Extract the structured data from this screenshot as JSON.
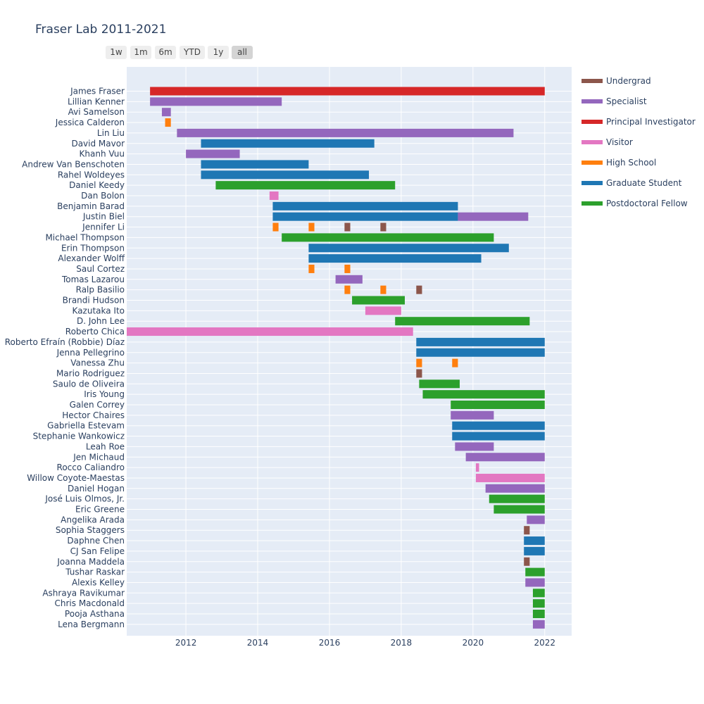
{
  "title": "Fraser Lab 2011-2021",
  "range_buttons": [
    {
      "label": "1w",
      "active": false
    },
    {
      "label": "1m",
      "active": false
    },
    {
      "label": "6m",
      "active": false
    },
    {
      "label": "YTD",
      "active": false
    },
    {
      "label": "1y",
      "active": false
    },
    {
      "label": "all",
      "active": true
    }
  ],
  "legend": [
    {
      "name": "Undergrad",
      "color": "#8c564b"
    },
    {
      "name": "Specialist",
      "color": "#9467bd"
    },
    {
      "name": "Principal Investigator",
      "color": "#d62728"
    },
    {
      "name": "Visitor",
      "color": "#e377c2"
    },
    {
      "name": "High School",
      "color": "#ff7f0e"
    },
    {
      "name": "Graduate Student",
      "color": "#1f77b4"
    },
    {
      "name": "Postdoctoral Fellow",
      "color": "#2ca02c"
    }
  ],
  "chart_data": {
    "type": "gantt",
    "title": "Fraser Lab 2011-2021",
    "x_ticks": [
      "2012",
      "2014",
      "2016",
      "2018",
      "2020",
      "2022"
    ],
    "x_tick_values": [
      2012,
      2014,
      2016,
      2018,
      2020,
      2022
    ],
    "xlim": [
      2010.35,
      2022.75
    ],
    "grid": true,
    "legend_position": "right",
    "people": [
      "James Fraser",
      "Lillian Kenner",
      "Avi Samelson",
      "Jessica Calderon",
      "Lin Liu",
      "David Mavor",
      "Khanh Vuu",
      "Andrew Van Benschoten",
      "Rahel Woldeyes",
      "Daniel Keedy",
      "Dan Bolon",
      "Benjamin Barad",
      "Justin Biel",
      "Jennifer Li",
      "Michael Thompson",
      "Erin Thompson",
      "Alexander Wolff",
      "Saul Cortez",
      "Tomas Lazarou",
      "Ralp Basilio",
      "Brandi Hudson",
      "Kazutaka Ito",
      "D. John Lee",
      "Roberto Chica",
      "Roberto Efraín (Robbie) Díaz",
      "Jenna Pellegrino",
      "Vanessa Zhu",
      "Mario Rodriguez",
      "Saulo de Oliveira",
      "Iris Young",
      "Galen Correy",
      "Hector Chaires",
      "Gabriella Estevam",
      "Stephanie Wankowicz",
      "Leah Roe",
      "Jen Michaud",
      "Rocco Caliandro",
      "Willow Coyote-Maestas",
      "Daniel Hogan",
      "José Luis Olmos, Jr.",
      "Eric Greene",
      "Angelika Arada",
      "Sophia Staggers",
      "Daphne Chen",
      "CJ San Felipe",
      "Joanna Maddela",
      "Tushar Raskar",
      "Alexis Kelley",
      "Ashraya Ravikumar",
      "Chris Macdonald",
      "Pooja Asthana",
      "Lena Bergmann"
    ],
    "tasks": [
      {
        "person": "James Fraser",
        "role": "Principal Investigator",
        "start": 2011.0,
        "end": 2022.0
      },
      {
        "person": "Lillian Kenner",
        "role": "Specialist",
        "start": 2011.0,
        "end": 2014.67
      },
      {
        "person": "Avi Samelson",
        "role": "Specialist",
        "start": 2011.33,
        "end": 2011.58
      },
      {
        "person": "Jessica Calderon",
        "role": "High School",
        "start": 2011.42,
        "end": 2011.58
      },
      {
        "person": "Lin Liu",
        "role": "Specialist",
        "start": 2011.75,
        "end": 2021.13
      },
      {
        "person": "David Mavor",
        "role": "Graduate Student",
        "start": 2012.42,
        "end": 2017.25
      },
      {
        "person": "Khanh Vuu",
        "role": "Specialist",
        "start": 2012.0,
        "end": 2013.5
      },
      {
        "person": "Andrew Van Benschoten",
        "role": "Graduate Student",
        "start": 2012.42,
        "end": 2015.42
      },
      {
        "person": "Rahel Woldeyes",
        "role": "Graduate Student",
        "start": 2012.42,
        "end": 2017.1
      },
      {
        "person": "Daniel Keedy",
        "role": "Postdoctoral Fellow",
        "start": 2012.83,
        "end": 2017.83
      },
      {
        "person": "Dan Bolon",
        "role": "Visitor",
        "start": 2014.33,
        "end": 2014.58
      },
      {
        "person": "Benjamin Barad",
        "role": "Graduate Student",
        "start": 2014.42,
        "end": 2019.58
      },
      {
        "person": "Justin Biel",
        "role": "Graduate Student",
        "start": 2014.42,
        "end": 2019.58
      },
      {
        "person": "Justin Biel",
        "role": "Specialist",
        "start": 2019.58,
        "end": 2021.54
      },
      {
        "person": "Jennifer Li",
        "role": "High School",
        "start": 2014.42,
        "end": 2014.58
      },
      {
        "person": "Jennifer Li",
        "role": "High School",
        "start": 2015.42,
        "end": 2015.58
      },
      {
        "person": "Jennifer Li",
        "role": "Undergrad",
        "start": 2016.42,
        "end": 2016.58
      },
      {
        "person": "Jennifer Li",
        "role": "Undergrad",
        "start": 2017.42,
        "end": 2017.58
      },
      {
        "person": "Michael Thompson",
        "role": "Postdoctoral Fellow",
        "start": 2014.67,
        "end": 2020.58
      },
      {
        "person": "Erin Thompson",
        "role": "Graduate Student",
        "start": 2015.42,
        "end": 2021.0
      },
      {
        "person": "Alexander Wolff",
        "role": "Graduate Student",
        "start": 2015.42,
        "end": 2020.23
      },
      {
        "person": "Saul Cortez",
        "role": "High School",
        "start": 2015.42,
        "end": 2015.58
      },
      {
        "person": "Saul Cortez",
        "role": "High School",
        "start": 2016.42,
        "end": 2016.58
      },
      {
        "person": "Tomas Lazarou",
        "role": "Specialist",
        "start": 2016.17,
        "end": 2016.92
      },
      {
        "person": "Ralp Basilio",
        "role": "High School",
        "start": 2016.42,
        "end": 2016.58
      },
      {
        "person": "Ralp Basilio",
        "role": "High School",
        "start": 2017.42,
        "end": 2017.58
      },
      {
        "person": "Ralp Basilio",
        "role": "Undergrad",
        "start": 2018.42,
        "end": 2018.58
      },
      {
        "person": "Brandi Hudson",
        "role": "Postdoctoral Fellow",
        "start": 2016.63,
        "end": 2018.1
      },
      {
        "person": "Kazutaka Ito",
        "role": "Visitor",
        "start": 2017.0,
        "end": 2018.0
      },
      {
        "person": "D. John Lee",
        "role": "Postdoctoral Fellow",
        "start": 2017.83,
        "end": 2021.58
      },
      {
        "person": "Roberto Chica",
        "role": "Visitor",
        "start": 218.0,
        "end": 2018.33
      },
      {
        "person": "Roberto Efraín (Robbie) Díaz",
        "role": "Graduate Student",
        "start": 2018.42,
        "end": 2022.0
      },
      {
        "person": "Jenna Pellegrino",
        "role": "Graduate Student",
        "start": 2018.42,
        "end": 2022.0
      },
      {
        "person": "Vanessa Zhu",
        "role": "High School",
        "start": 2018.42,
        "end": 2018.58
      },
      {
        "person": "Vanessa Zhu",
        "role": "High School",
        "start": 2019.42,
        "end": 2019.58
      },
      {
        "person": "Mario Rodriguez",
        "role": "Undergrad",
        "start": 2018.42,
        "end": 2018.58
      },
      {
        "person": "Saulo de Oliveira",
        "role": "Postdoctoral Fellow",
        "start": 2018.5,
        "end": 2019.63
      },
      {
        "person": "Iris Young",
        "role": "Postdoctoral Fellow",
        "start": 2018.6,
        "end": 2022.0
      },
      {
        "person": "Galen Correy",
        "role": "Postdoctoral Fellow",
        "start": 2019.38,
        "end": 2022.0
      },
      {
        "person": "Hector Chaires",
        "role": "Specialist",
        "start": 2019.38,
        "end": 2020.58
      },
      {
        "person": "Gabriella Estevam",
        "role": "Graduate Student",
        "start": 2019.42,
        "end": 2022.0
      },
      {
        "person": "Stephanie Wankowicz",
        "role": "Graduate Student",
        "start": 2019.42,
        "end": 2022.0
      },
      {
        "person": "Leah Roe",
        "role": "Specialist",
        "start": 2019.5,
        "end": 2020.58
      },
      {
        "person": "Jen Michaud",
        "role": "Specialist",
        "start": 2019.8,
        "end": 2022.0
      },
      {
        "person": "Rocco Caliandro",
        "role": "Visitor",
        "start": 2020.08,
        "end": 2020.17
      },
      {
        "person": "Willow Coyote-Maestas",
        "role": "Visitor",
        "start": 2020.08,
        "end": 2022.0
      },
      {
        "person": "Daniel Hogan",
        "role": "Specialist",
        "start": 2020.35,
        "end": 2022.0
      },
      {
        "person": "José Luis Olmos, Jr.",
        "role": "Postdoctoral Fellow",
        "start": 2020.45,
        "end": 2022.0
      },
      {
        "person": "Eric Greene",
        "role": "Postdoctoral Fellow",
        "start": 2020.58,
        "end": 2022.0
      },
      {
        "person": "Angelika Arada",
        "role": "Specialist",
        "start": 2021.5,
        "end": 2022.0
      },
      {
        "person": "Sophia Staggers",
        "role": "Undergrad",
        "start": 2021.42,
        "end": 2021.58
      },
      {
        "person": "Daphne Chen",
        "role": "Graduate Student",
        "start": 2021.42,
        "end": 2022.0
      },
      {
        "person": "CJ San Felipe",
        "role": "Graduate Student",
        "start": 2021.42,
        "end": 2022.0
      },
      {
        "person": "Joanna Maddela",
        "role": "Undergrad",
        "start": 2021.42,
        "end": 2021.58
      },
      {
        "person": "Tushar Raskar",
        "role": "Postdoctoral Fellow",
        "start": 2021.46,
        "end": 2022.0
      },
      {
        "person": "Alexis Kelley",
        "role": "Specialist",
        "start": 2021.46,
        "end": 2022.0
      },
      {
        "person": "Ashraya Ravikumar",
        "role": "Postdoctoral Fellow",
        "start": 2021.67,
        "end": 2022.0
      },
      {
        "person": "Chris Macdonald",
        "role": "Postdoctoral Fellow",
        "start": 2021.67,
        "end": 2022.0
      },
      {
        "person": "Pooja Asthana",
        "role": "Postdoctoral Fellow",
        "start": 2021.67,
        "end": 2022.0
      },
      {
        "person": "Lena Bergmann",
        "role": "Specialist",
        "start": 2021.67,
        "end": 2022.0
      }
    ]
  }
}
